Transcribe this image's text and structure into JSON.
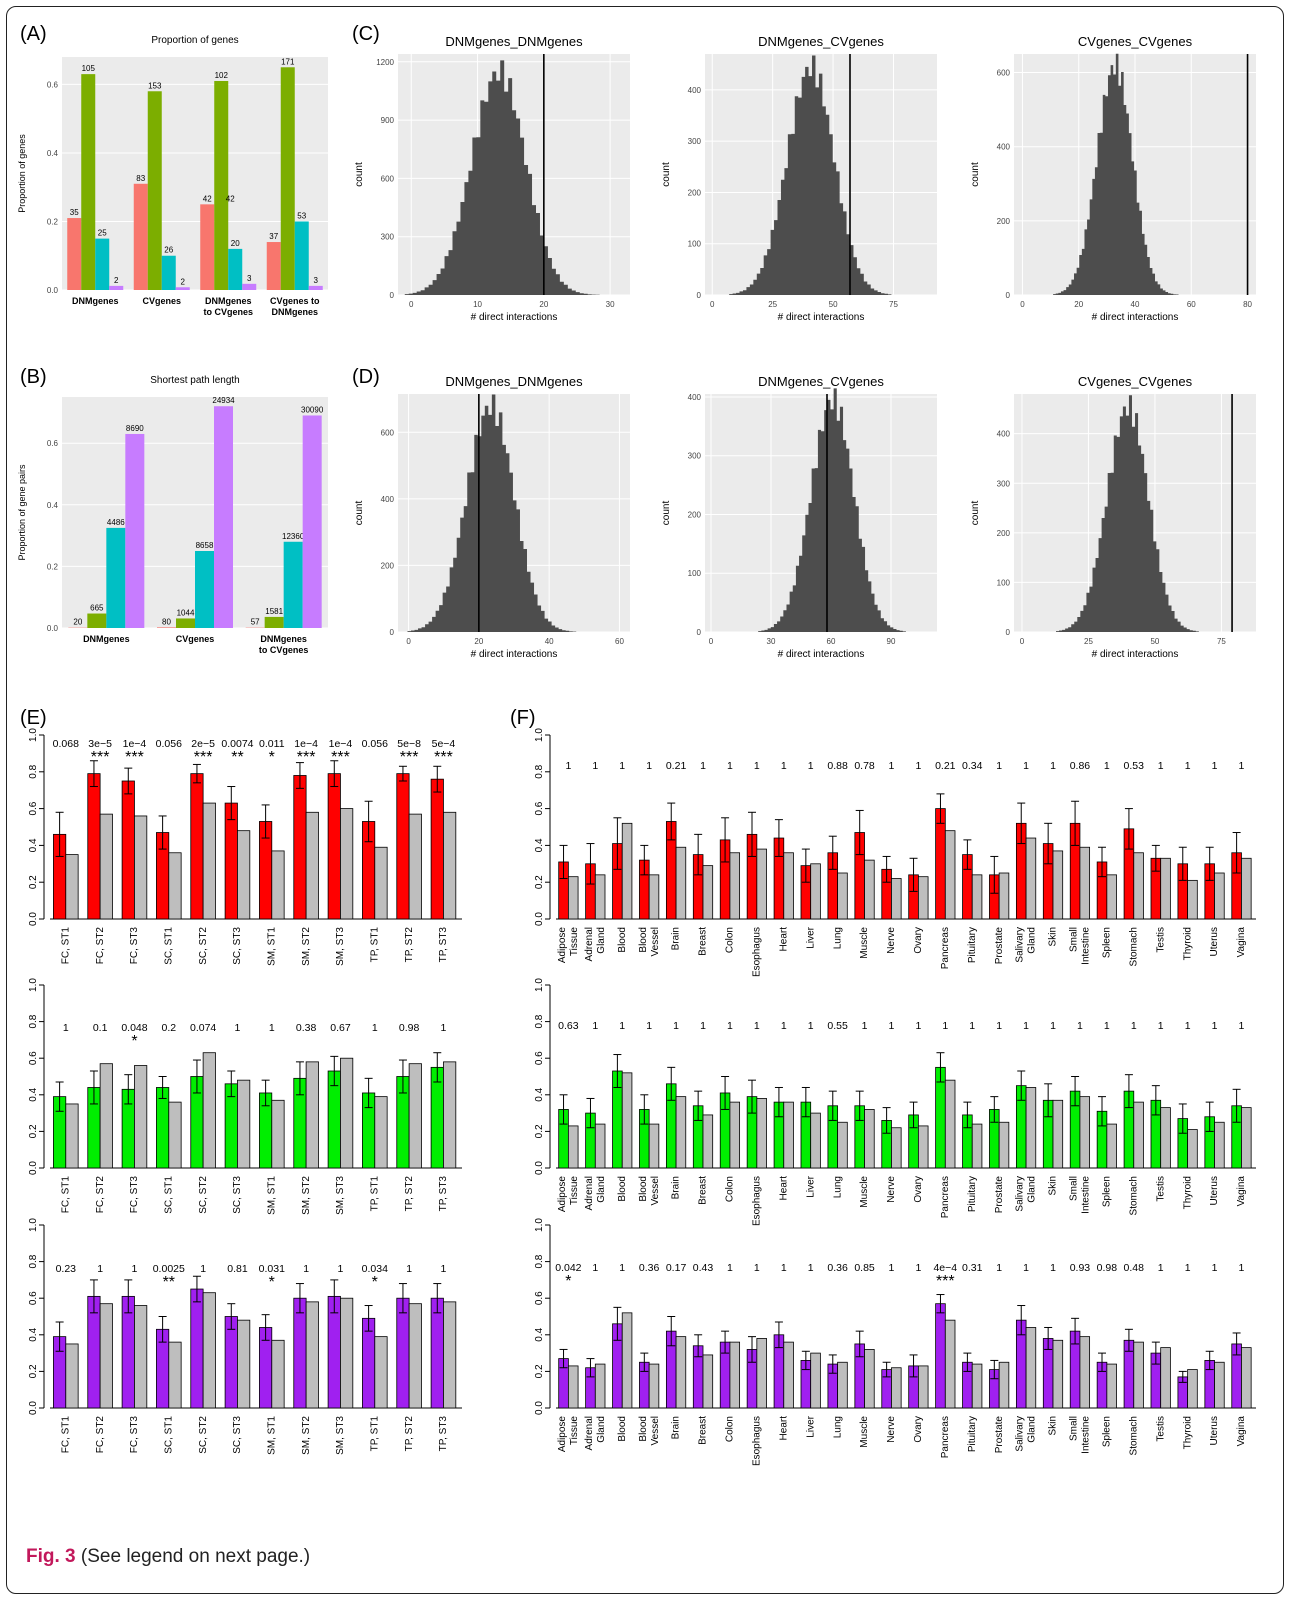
{
  "panel_labels": {
    "a": "(A)",
    "b": "(B)",
    "c": "(C)",
    "d": "(D)",
    "e": "(E)",
    "f": "(F)"
  },
  "caption": {
    "fig": "Fig. 3",
    "text": "(See legend on next page.)"
  },
  "colors": {
    "pink": "#f8766d",
    "green": "#7cae00",
    "teal": "#00bfc4",
    "purple": "#c77cff",
    "red": "#ff0000",
    "lime": "#00ee00",
    "violet": "#a020f0",
    "gray": "#bebebe",
    "hist": "#4d4d4d",
    "panel": "#ebebeb"
  },
  "chart_data": [
    {
      "id": "A",
      "type": "bar",
      "title": "Proportion of genes",
      "ylabel": "Proportion of genes",
      "categories": [
        "DNMgenes",
        "CVgenes",
        "DNMgenes to CVgenes",
        "CVgenes to DNMgenes"
      ],
      "ylim": [
        0,
        0.68
      ],
      "yticks": [
        "0.0",
        "0.2",
        "0.4",
        "0.6"
      ],
      "series": [
        {
          "values": [
            0.21,
            0.31,
            0.25,
            0.14
          ],
          "labels": [
            "35",
            "83",
            "42",
            "37"
          ]
        },
        {
          "values": [
            0.63,
            0.58,
            0.61,
            0.65
          ],
          "labels": [
            "105",
            "153",
            "102",
            "171"
          ]
        },
        {
          "values": [
            0.15,
            0.1,
            0.12,
            0.2
          ],
          "labels": [
            "25",
            "26",
            "20",
            "53"
          ]
        },
        {
          "values": [
            0.012,
            0.008,
            0.018,
            0.012
          ],
          "labels": [
            "2",
            "2",
            "3",
            "3"
          ]
        }
      ],
      "extra_labels": [
        "42"
      ]
    },
    {
      "id": "B",
      "type": "bar",
      "title": "Shortest path length",
      "ylabel": "Proportion of gene pairs",
      "categories": [
        "DNMgenes",
        "CVgenes",
        "DNMgenes to CVgenes"
      ],
      "ylim": [
        0,
        0.75
      ],
      "yticks": [
        "0.0",
        "0.2",
        "0.4",
        "0.6"
      ],
      "series": [
        {
          "values": [
            0.001,
            0.002,
            0.001
          ],
          "labels": [
            "20",
            "80",
            "57"
          ]
        },
        {
          "values": [
            0.047,
            0.031,
            0.036
          ],
          "labels": [
            "665",
            "1044",
            "1581"
          ]
        },
        {
          "values": [
            0.325,
            0.25,
            0.28
          ],
          "labels": [
            "4486",
            "8658",
            "12360"
          ]
        },
        {
          "values": [
            0.63,
            0.72,
            0.69
          ],
          "labels": [
            "8690",
            "24934",
            "30090"
          ]
        }
      ]
    },
    {
      "id": "C1",
      "type": "histogram",
      "title": "DNMgenes_DNMgenes",
      "xlabel": "# direct interactions",
      "ylabel": "count",
      "xlim": [
        -2,
        33
      ],
      "ylim": [
        0,
        1240
      ],
      "xticks": [
        0,
        10,
        20,
        30
      ],
      "yticks": [
        0,
        300,
        600,
        900,
        1200
      ],
      "mean": 13.3,
      "sd": 4.2,
      "peak": 1150,
      "observed": 20
    },
    {
      "id": "C2",
      "type": "histogram",
      "title": "DNMgenes_CVgenes",
      "xlabel": "# direct interactions",
      "ylabel": "count",
      "xlim": [
        -3,
        93
      ],
      "ylim": [
        0,
        470
      ],
      "xticks": [
        0,
        25,
        50,
        75
      ],
      "yticks": [
        0,
        100,
        200,
        300,
        400
      ],
      "mean": 41,
      "sd": 10,
      "peak": 445,
      "observed": 57
    },
    {
      "id": "C3",
      "type": "histogram",
      "title": "CVgenes_CVgenes",
      "xlabel": "# direct interactions",
      "ylabel": "count",
      "xlim": [
        -3,
        83
      ],
      "ylim": [
        0,
        650
      ],
      "xticks": [
        0,
        20,
        40,
        60,
        80
      ],
      "yticks": [
        0,
        200,
        400,
        600
      ],
      "mean": 33,
      "sd": 6.5,
      "peak": 620,
      "observed": 80
    },
    {
      "id": "D1",
      "type": "histogram",
      "title": "DNMgenes_DNMgenes",
      "xlabel": "# direct interactions",
      "ylabel": "count",
      "xlim": [
        -3,
        63
      ],
      "ylim": [
        0,
        715
      ],
      "xticks": [
        0,
        20,
        40,
        60
      ],
      "yticks": [
        0,
        200,
        400,
        600
      ],
      "mean": 23.5,
      "sd": 7,
      "peak": 680,
      "observed": 20
    },
    {
      "id": "D2",
      "type": "histogram",
      "title": "DNMgenes_CVgenes",
      "xlabel": "# direct interactions",
      "ylabel": "count",
      "xlim": [
        -3,
        113
      ],
      "ylim": [
        0,
        405
      ],
      "xticks": [
        0,
        30,
        60,
        90
      ],
      "yticks": [
        0,
        100,
        200,
        300,
        400
      ],
      "mean": 61,
      "sd": 11,
      "peak": 395,
      "observed": 58
    },
    {
      "id": "D3",
      "type": "histogram",
      "title": "CVgenes_CVgenes",
      "xlabel": "# direct interactions",
      "ylabel": "count",
      "xlim": [
        -3,
        88
      ],
      "ylim": [
        0,
        480
      ],
      "xticks": [
        0,
        25,
        50,
        75
      ],
      "yticks": [
        0,
        100,
        200,
        300,
        400
      ],
      "mean": 40,
      "sd": 8,
      "peak": 455,
      "observed": 79
    },
    {
      "id": "E1",
      "type": "bar",
      "xcats": [
        "FC, ST1",
        "FC, ST2",
        "FC, ST3",
        "SC, ST1",
        "SC, ST2",
        "SC, ST3",
        "SM, ST1",
        "SM, ST2",
        "SM, ST3",
        "TP, ST1",
        "TP, ST2",
        "TP, ST3"
      ],
      "ylim": [
        0,
        1
      ],
      "yticks": [
        "0.0",
        "0.2",
        "0.4",
        "0.6",
        "0.8",
        "1.0"
      ],
      "values": [
        0.46,
        0.79,
        0.75,
        0.47,
        0.79,
        0.63,
        0.53,
        0.78,
        0.79,
        0.53,
        0.79,
        0.76
      ],
      "err": [
        0.12,
        0.07,
        0.07,
        0.09,
        0.05,
        0.09,
        0.09,
        0.07,
        0.07,
        0.11,
        0.04,
        0.07
      ],
      "gray": [
        0.35,
        0.57,
        0.56,
        0.36,
        0.63,
        0.48,
        0.37,
        0.58,
        0.6,
        0.39,
        0.57,
        0.58
      ],
      "pvals": [
        "0.068",
        "3e−5",
        "1e−4",
        "0.056",
        "2e−5",
        "0.0074",
        "0.011",
        "1e−4",
        "1e−4",
        "0.056",
        "5e−8",
        "5e−4"
      ],
      "stars": [
        "",
        "***",
        "***",
        "",
        "***",
        "**",
        "*",
        "***",
        "***",
        "",
        "***",
        "***"
      ]
    },
    {
      "id": "E2",
      "type": "bar",
      "xcats": [
        "FC, ST1",
        "FC, ST2",
        "FC, ST3",
        "SC, ST1",
        "SC, ST2",
        "SC, ST3",
        "SM, ST1",
        "SM, ST2",
        "SM, ST3",
        "TP, ST1",
        "TP, ST2",
        "TP, ST3"
      ],
      "ylim": [
        0,
        1
      ],
      "yticks": [
        "0.0",
        "0.2",
        "0.4",
        "0.6",
        "0.8",
        "1.0"
      ],
      "values": [
        0.39,
        0.44,
        0.43,
        0.44,
        0.5,
        0.46,
        0.41,
        0.49,
        0.53,
        0.41,
        0.5,
        0.55
      ],
      "err": [
        0.08,
        0.09,
        0.08,
        0.06,
        0.09,
        0.07,
        0.07,
        0.09,
        0.08,
        0.08,
        0.09,
        0.08
      ],
      "gray": [
        0.35,
        0.57,
        0.56,
        0.36,
        0.63,
        0.48,
        0.37,
        0.58,
        0.6,
        0.39,
        0.57,
        0.58
      ],
      "pvals": [
        "1",
        "0.1",
        "0.048",
        "0.2",
        "0.074",
        "1",
        "1",
        "0.38",
        "0.67",
        "1",
        "0.98",
        "1"
      ],
      "stars": [
        "",
        "",
        "*",
        "",
        "",
        "",
        "",
        "",
        "",
        "",
        "",
        ""
      ]
    },
    {
      "id": "E3",
      "type": "bar",
      "xcats": [
        "FC, ST1",
        "FC, ST2",
        "FC, ST3",
        "SC, ST1",
        "SC, ST2",
        "SC, ST3",
        "SM, ST1",
        "SM, ST2",
        "SM, ST3",
        "TP, ST1",
        "TP, ST2",
        "TP, ST3"
      ],
      "ylim": [
        0,
        1
      ],
      "yticks": [
        "0.0",
        "0.2",
        "0.4",
        "0.6",
        "0.8",
        "1.0"
      ],
      "values": [
        0.39,
        0.61,
        0.61,
        0.43,
        0.65,
        0.5,
        0.44,
        0.6,
        0.61,
        0.49,
        0.6,
        0.6
      ],
      "err": [
        0.08,
        0.09,
        0.09,
        0.07,
        0.07,
        0.07,
        0.07,
        0.08,
        0.09,
        0.07,
        0.08,
        0.08
      ],
      "gray": [
        0.35,
        0.57,
        0.56,
        0.36,
        0.63,
        0.48,
        0.37,
        0.58,
        0.6,
        0.39,
        0.57,
        0.58
      ],
      "pvals": [
        "0.23",
        "1",
        "1",
        "0.0025",
        "1",
        "0.81",
        "0.031",
        "1",
        "1",
        "0.034",
        "1",
        "1"
      ],
      "stars": [
        "",
        "",
        "",
        "**",
        "",
        "",
        "*",
        "",
        "",
        "*",
        "",
        ""
      ]
    },
    {
      "id": "F1",
      "type": "bar",
      "xcats": [
        "Adipose Tissue",
        "Adrenal Gland",
        "Blood",
        "Blood Vessel",
        "Brain",
        "Breast",
        "Colon",
        "Esophagus",
        "Heart",
        "Liver",
        "Lung",
        "Muscle",
        "Nerve",
        "Ovary",
        "Pancreas",
        "Pituitary",
        "Prostate",
        "Salivary Gland",
        "Skin",
        "Small Intestine",
        "Spleen",
        "Stomach",
        "Testis",
        "Thyroid",
        "Uterus",
        "Vagina"
      ],
      "ylim": [
        0,
        1
      ],
      "yticks": [
        "0.0",
        "0.2",
        "0.4",
        "0.6",
        "0.8",
        "1.0"
      ],
      "values": [
        0.31,
        0.3,
        0.41,
        0.32,
        0.53,
        0.35,
        0.43,
        0.46,
        0.44,
        0.29,
        0.36,
        0.47,
        0.27,
        0.24,
        0.6,
        0.35,
        0.24,
        0.52,
        0.41,
        0.52,
        0.31,
        0.49,
        0.33,
        0.3,
        0.3,
        0.36
      ],
      "err": [
        0.09,
        0.11,
        0.14,
        0.08,
        0.1,
        0.11,
        0.12,
        0.12,
        0.1,
        0.09,
        0.09,
        0.12,
        0.07,
        0.09,
        0.08,
        0.08,
        0.1,
        0.11,
        0.11,
        0.12,
        0.08,
        0.11,
        0.07,
        0.09,
        0.09,
        0.11
      ],
      "gray": [
        0.23,
        0.24,
        0.52,
        0.24,
        0.39,
        0.29,
        0.36,
        0.38,
        0.36,
        0.3,
        0.25,
        0.32,
        0.22,
        0.23,
        0.48,
        0.24,
        0.25,
        0.44,
        0.37,
        0.39,
        0.24,
        0.36,
        0.33,
        0.21,
        0.25,
        0.33
      ],
      "pvals": [
        "1",
        "1",
        "1",
        "1",
        "0.21",
        "1",
        "1",
        "1",
        "1",
        "1",
        "0.88",
        "0.78",
        "1",
        "1",
        "0.21",
        "0.34",
        "1",
        "1",
        "1",
        "0.86",
        "1",
        "0.53",
        "1",
        "1",
        "1",
        "1"
      ],
      "stars": [
        "",
        "",
        "",
        "",
        "",
        "",
        "",
        "",
        "",
        "",
        "",
        "",
        "",
        "",
        "",
        "",
        "",
        "",
        "",
        "",
        "",
        "",
        "",
        "",
        "",
        ""
      ]
    },
    {
      "id": "F2",
      "type": "bar",
      "xcats": [
        "Adipose Tissue",
        "Adrenal Gland",
        "Blood",
        "Blood Vessel",
        "Brain",
        "Breast",
        "Colon",
        "Esophagus",
        "Heart",
        "Liver",
        "Lung",
        "Muscle",
        "Nerve",
        "Ovary",
        "Pancreas",
        "Pituitary",
        "Prostate",
        "Salivary Gland",
        "Skin",
        "Small Intestine",
        "Spleen",
        "Stomach",
        "Testis",
        "Thyroid",
        "Uterus",
        "Vagina"
      ],
      "ylim": [
        0,
        1
      ],
      "yticks": [
        "0.0",
        "0.2",
        "0.4",
        "0.6",
        "0.8",
        "1.0"
      ],
      "values": [
        0.32,
        0.3,
        0.53,
        0.32,
        0.46,
        0.34,
        0.41,
        0.39,
        0.36,
        0.36,
        0.34,
        0.34,
        0.26,
        0.29,
        0.55,
        0.29,
        0.32,
        0.45,
        0.37,
        0.42,
        0.31,
        0.42,
        0.37,
        0.27,
        0.28,
        0.34
      ],
      "err": [
        0.08,
        0.08,
        0.09,
        0.08,
        0.09,
        0.08,
        0.09,
        0.09,
        0.08,
        0.08,
        0.08,
        0.08,
        0.07,
        0.07,
        0.08,
        0.07,
        0.07,
        0.08,
        0.09,
        0.08,
        0.08,
        0.09,
        0.08,
        0.08,
        0.08,
        0.09
      ],
      "gray": [
        0.23,
        0.24,
        0.52,
        0.24,
        0.39,
        0.29,
        0.36,
        0.38,
        0.36,
        0.3,
        0.25,
        0.32,
        0.22,
        0.23,
        0.48,
        0.24,
        0.25,
        0.44,
        0.37,
        0.39,
        0.24,
        0.36,
        0.33,
        0.21,
        0.25,
        0.33
      ],
      "pvals": [
        "0.63",
        "1",
        "1",
        "1",
        "1",
        "1",
        "1",
        "1",
        "1",
        "1",
        "0.55",
        "1",
        "1",
        "1",
        "1",
        "1",
        "1",
        "1",
        "1",
        "1",
        "1",
        "1",
        "1",
        "1",
        "1",
        "1"
      ],
      "stars": [
        "",
        "",
        "",
        "",
        "",
        "",
        "",
        "",
        "",
        "",
        "",
        "",
        "",
        "",
        "",
        "",
        "",
        "",
        "",
        "",
        "",
        "",
        "",
        "",
        "",
        ""
      ]
    },
    {
      "id": "F3",
      "type": "bar",
      "xcats": [
        "Adipose Tissue",
        "Adrenal Gland",
        "Blood",
        "Blood Vessel",
        "Brain",
        "Breast",
        "Colon",
        "Esophagus",
        "Heart",
        "Liver",
        "Lung",
        "Muscle",
        "Nerve",
        "Ovary",
        "Pancreas",
        "Pituitary",
        "Prostate",
        "Salivary Gland",
        "Skin",
        "Small Intestine",
        "Spleen",
        "Stomach",
        "Testis",
        "Thyroid",
        "Uterus",
        "Vagina"
      ],
      "ylim": [
        0,
        1
      ],
      "yticks": [
        "0.0",
        "0.2",
        "0.4",
        "0.6",
        "0.8",
        "1.0"
      ],
      "values": [
        0.27,
        0.22,
        0.46,
        0.25,
        0.42,
        0.34,
        0.36,
        0.32,
        0.4,
        0.26,
        0.24,
        0.35,
        0.21,
        0.23,
        0.57,
        0.25,
        0.21,
        0.48,
        0.38,
        0.42,
        0.25,
        0.37,
        0.3,
        0.17,
        0.26,
        0.35
      ],
      "err": [
        0.05,
        0.05,
        0.09,
        0.05,
        0.08,
        0.06,
        0.06,
        0.07,
        0.07,
        0.05,
        0.05,
        0.07,
        0.04,
        0.06,
        0.05,
        0.05,
        0.05,
        0.08,
        0.06,
        0.07,
        0.05,
        0.06,
        0.06,
        0.03,
        0.05,
        0.06
      ],
      "gray": [
        0.23,
        0.24,
        0.52,
        0.24,
        0.39,
        0.29,
        0.36,
        0.38,
        0.36,
        0.3,
        0.25,
        0.32,
        0.22,
        0.23,
        0.48,
        0.24,
        0.25,
        0.44,
        0.37,
        0.39,
        0.24,
        0.36,
        0.33,
        0.21,
        0.25,
        0.33
      ],
      "pvals": [
        "0.042",
        "1",
        "1",
        "0.36",
        "0.17",
        "0.43",
        "1",
        "1",
        "1",
        "1",
        "0.36",
        "0.85",
        "1",
        "1",
        "4e−4",
        "0.31",
        "1",
        "1",
        "1",
        "0.93",
        "0.98",
        "0.48",
        "1",
        "1",
        "1",
        "1"
      ],
      "stars": [
        "*",
        "",
        "",
        "",
        "",
        "",
        "",
        "",
        "",
        "",
        "",
        "",
        "",
        "",
        "***",
        "",
        "",
        "",
        "",
        "",
        "",
        "",
        "",
        "",
        "",
        ""
      ]
    }
  ]
}
